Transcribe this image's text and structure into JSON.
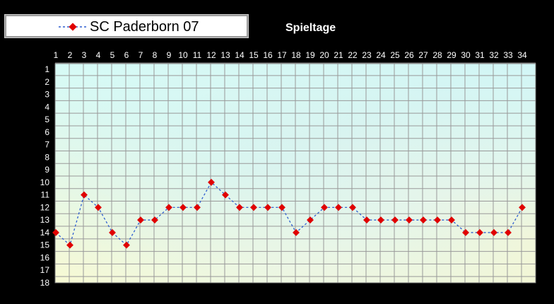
{
  "legend": {
    "label": "SC Paderborn 07"
  },
  "header": {
    "title": "Spieltage"
  },
  "colors": {
    "line": "#2f5fd0",
    "marker": "#e00000",
    "grid": "#999999",
    "background": "#000000",
    "text": "#ffffff"
  },
  "chart_data": {
    "type": "line",
    "title": "",
    "xlabel": "Spieltage",
    "ylabel": "",
    "x_axis_position": "top",
    "y_axis": "inverted",
    "grid": true,
    "legend_placement": "top-left",
    "xlim": [
      1,
      34
    ],
    "ylim": [
      1,
      18
    ],
    "categories": [
      "1",
      "2",
      "3",
      "4",
      "5",
      "6",
      "7",
      "8",
      "9",
      "10",
      "11",
      "12",
      "13",
      "14",
      "15",
      "16",
      "17",
      "18",
      "19",
      "20",
      "21",
      "22",
      "23",
      "24",
      "25",
      "26",
      "27",
      "28",
      "29",
      "30",
      "31",
      "32",
      "33",
      "34"
    ],
    "yticks": [
      "1",
      "2",
      "3",
      "4",
      "5",
      "6",
      "7",
      "8",
      "9",
      "10",
      "11",
      "12",
      "13",
      "14",
      "15",
      "16",
      "17",
      "18"
    ],
    "series": [
      {
        "name": "SC Paderborn 07",
        "values": [
          14,
          15,
          11,
          12,
          14,
          15,
          13,
          13,
          12,
          12,
          12,
          10,
          11,
          12,
          12,
          12,
          12,
          14,
          13,
          12,
          12,
          12,
          13,
          13,
          13,
          13,
          13,
          13,
          13,
          14,
          14,
          14,
          14,
          12
        ]
      }
    ]
  }
}
